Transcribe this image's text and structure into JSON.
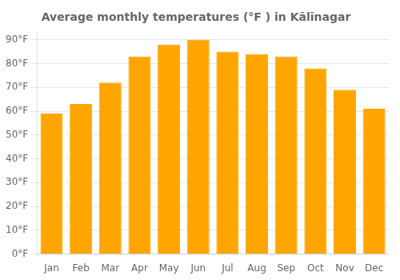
{
  "chart_data": {
    "type": "bar",
    "title": "Average monthly temperatures (°F ) in Kālīnagar",
    "categories": [
      "Jan",
      "Feb",
      "Mar",
      "Apr",
      "May",
      "Jun",
      "Jul",
      "Aug",
      "Sep",
      "Oct",
      "Nov",
      "Dec"
    ],
    "values": [
      59,
      63,
      72,
      83,
      88,
      90,
      85,
      84,
      83,
      78,
      69,
      61
    ],
    "color": "#FFA500",
    "ylim": [
      0,
      93
    ],
    "yticks": [
      {
        "value": 0,
        "label": "0°F"
      },
      {
        "value": 10,
        "label": "10°F"
      },
      {
        "value": 20,
        "label": "20°F"
      },
      {
        "value": 30,
        "label": "30°F"
      },
      {
        "value": 40,
        "label": "40°F"
      },
      {
        "value": 50,
        "label": "50°F"
      },
      {
        "value": 60,
        "label": "60°F"
      },
      {
        "value": 70,
        "label": "70°F"
      },
      {
        "value": 80,
        "label": "80°F"
      },
      {
        "value": 90,
        "label": "90°F"
      }
    ],
    "grid": true
  }
}
